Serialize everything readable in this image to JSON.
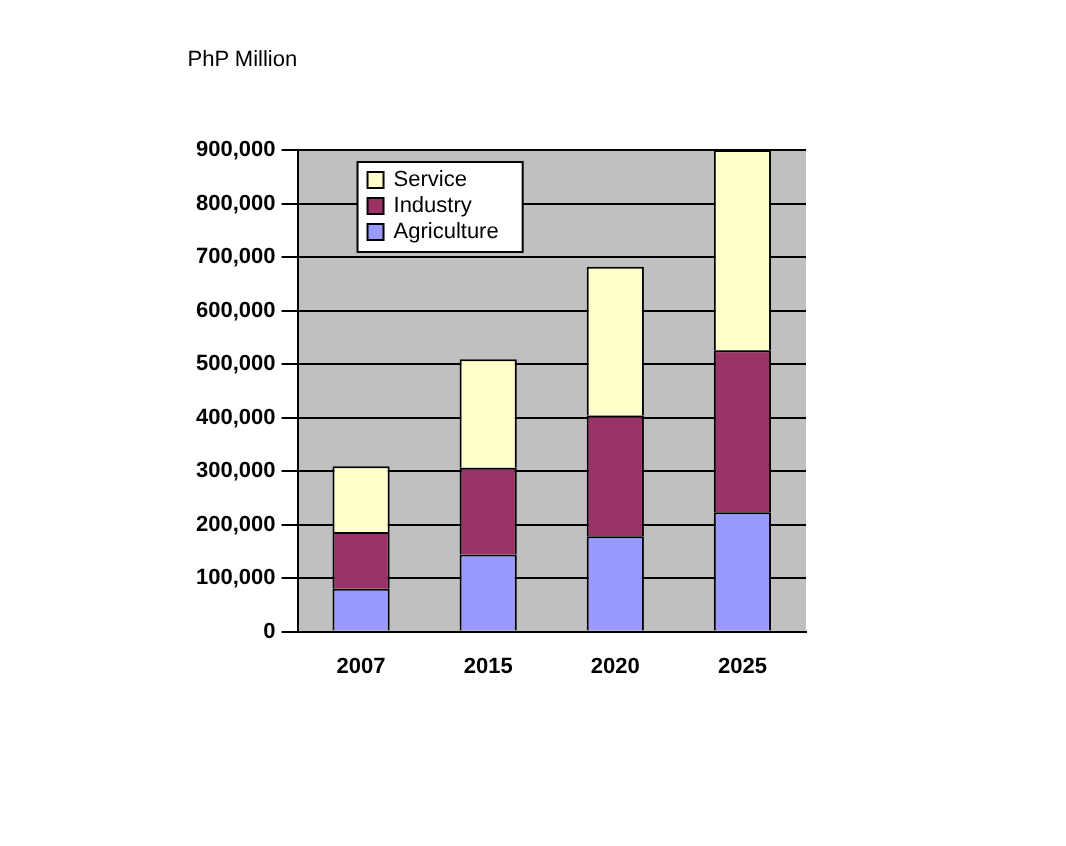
{
  "chart_data": {
    "type": "bar",
    "ylabel": "PhP Million",
    "categories": [
      "2007",
      "2015",
      "2020",
      "2025"
    ],
    "stacked": true,
    "series": [
      {
        "name": "Agriculture",
        "color": "#9999ff",
        "values": [
          80000,
          144000,
          178000,
          223000
        ]
      },
      {
        "name": "Industry",
        "color": "#993366",
        "values": [
          106000,
          162000,
          226000,
          303000
        ]
      },
      {
        "name": "Service",
        "color": "#ffffcc",
        "values": [
          123000,
          203000,
          278000,
          374000
        ]
      }
    ],
    "ylim": [
      0,
      900000
    ],
    "yticks": [
      0,
      {
        "value": 100000,
        "label": "100,000"
      },
      {
        "value": 200000,
        "label": "200,000"
      },
      {
        "value": 300000,
        "label": "300,000"
      },
      {
        "value": 400000,
        "label": "400,000"
      },
      {
        "value": 500000,
        "label": "500,000"
      },
      {
        "value": 600000,
        "label": "600,000"
      },
      {
        "value": 700000,
        "label": "700,000"
      },
      {
        "value": 800000,
        "label": "800,000"
      },
      {
        "value": 900000,
        "label": "900,000"
      }
    ],
    "grid": "y",
    "legend": "top left"
  }
}
